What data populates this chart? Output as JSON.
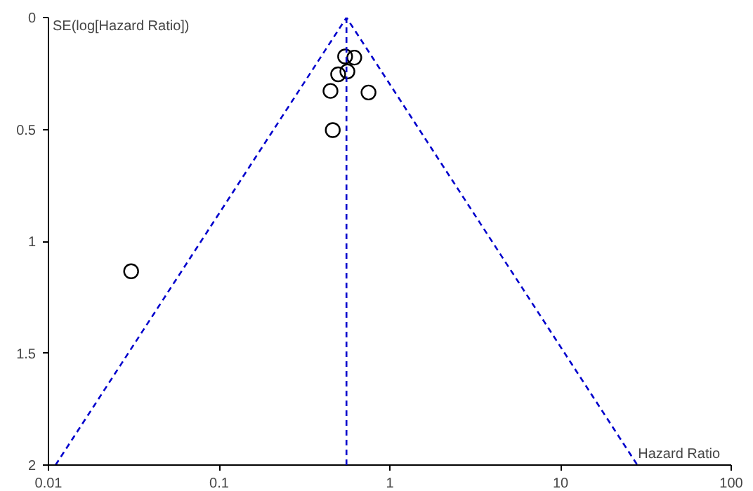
{
  "chart_data": {
    "type": "scatter",
    "xlabel": "Hazard Ratio",
    "ylabel": "SE(log[Hazard Ratio])",
    "log": "x",
    "xlim": [
      0.01,
      100
    ],
    "xticks": [
      0.01,
      0.1,
      1,
      10,
      100
    ],
    "ylim": [
      2,
      0
    ],
    "yticks": [
      0,
      0.5,
      1,
      1.5,
      2
    ],
    "grid": false,
    "series": [
      {
        "marker": "circle",
        "color": "#000000",
        "x": [
          0.547,
          0.619,
          0.498,
          0.564,
          0.449,
          0.75,
          0.463,
          0.0305
        ],
        "values": [
          0.174,
          0.179,
          0.254,
          0.241,
          0.328,
          0.335,
          0.503,
          1.134
        ]
      },
      {
        "type": "line",
        "color": "#0000cc",
        "line_style": "dashed",
        "x": [
          0.011,
          0.557,
          28.2
        ],
        "values": [
          2,
          0,
          2
        ]
      }
    ],
    "ref_lines": [
      {
        "axis": "x",
        "value": 0.557,
        "color": "#0000cc",
        "line_style": "dashed"
      }
    ]
  }
}
